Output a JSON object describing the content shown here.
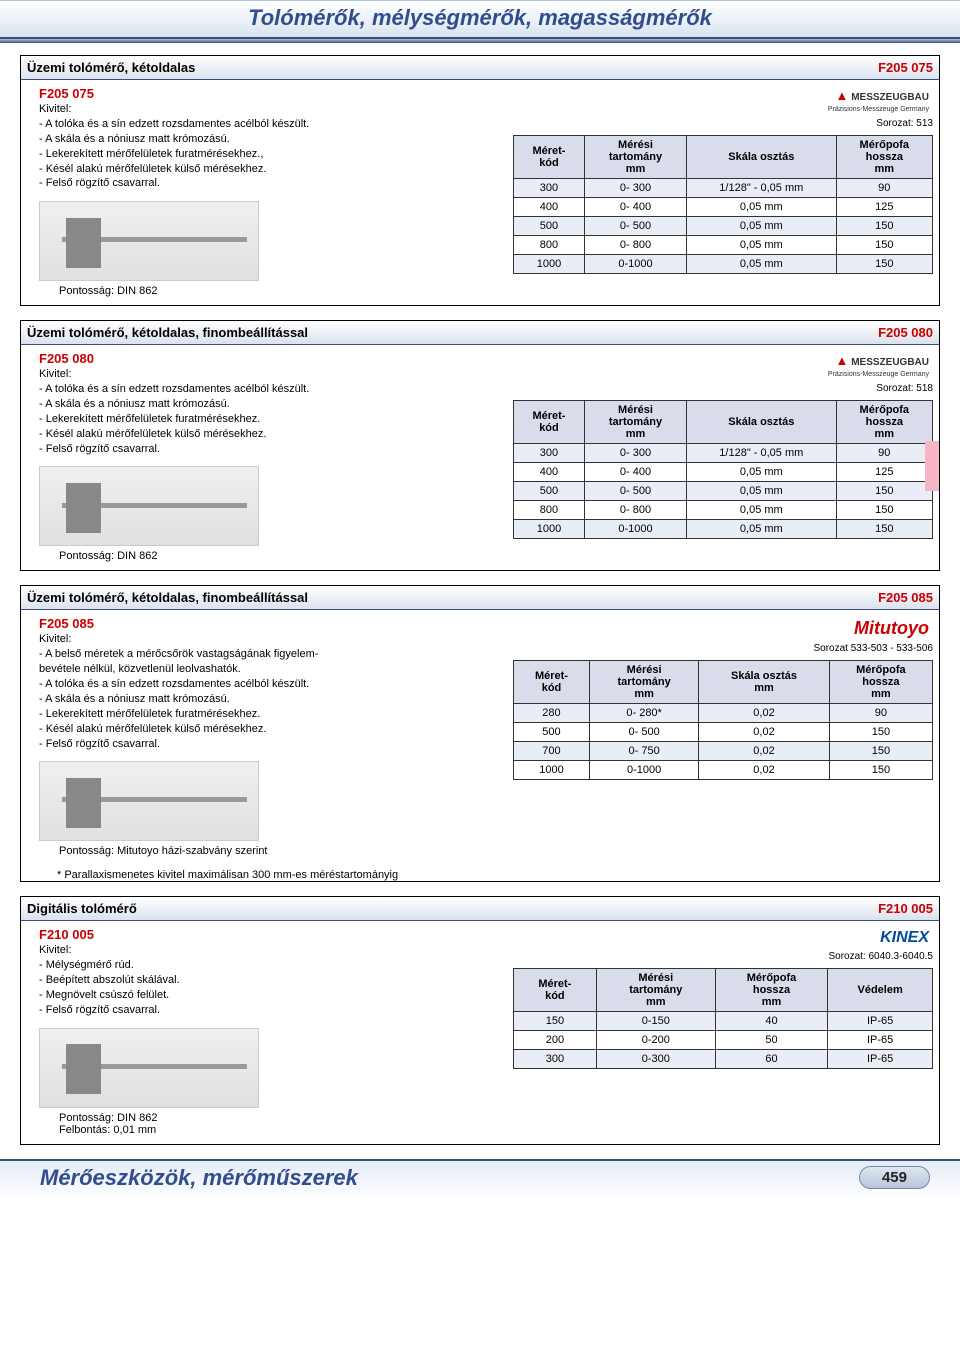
{
  "page_title": "Tolómérők, mélységmérők, magasságmérők",
  "footer_title": "Mérőeszközök, mérőműszerek",
  "page_number": "459",
  "sections": [
    {
      "header_title": "Üzemi tolómérő, kétoldalas",
      "header_code": "F205 075",
      "prod_code": "F205 075",
      "kivitel_label": "Kivitel:",
      "features": [
        "- A tolóka és a sín edzett rozsdamentes acélból készült.",
        "- A skála és a nóniusz matt krómozású.",
        "- Lekerekített mérőfelületek furatmérésekhez.,",
        "- Késél alakú mérőfelületek külső mérésekhez.",
        "- Felső rögzítő csavarral."
      ],
      "accuracy": "Pontosság: DIN 862",
      "brand": "MESSZEUGBAU",
      "brand_sub": "Präzisions-Messzeuge Germany",
      "sorozat": "Sorozat: 513",
      "columns": [
        "Méret-\nkód",
        "Mérési\ntartomány\nmm",
        "Skála osztás",
        "Mérőpofa\nhossza\nmm"
      ],
      "rows": [
        [
          "300",
          "0- 300",
          "1/128\" - 0,05 mm",
          "90"
        ],
        [
          "400",
          "0- 400",
          "0,05 mm",
          "125"
        ],
        [
          "500",
          "0- 500",
          "0,05 mm",
          "150"
        ],
        [
          "800",
          "0- 800",
          "0,05 mm",
          "150"
        ],
        [
          "1000",
          "0-1000",
          "0,05 mm",
          "150"
        ]
      ]
    },
    {
      "header_title": "Üzemi tolómérő, kétoldalas, finombeállítással",
      "header_code": "F205 080",
      "prod_code": "F205 080",
      "kivitel_label": "Kivitel:",
      "features": [
        "- A tolóka és a sín edzett rozsdamentes acélból készült.",
        "- A skála és a nóniusz matt krómozású.",
        "- Lekerekített mérőfelületek furatmérésekhez.",
        "- Késél alakú mérőfelületek külső mérésekhez.",
        "- Felső rögzítő csavarral."
      ],
      "accuracy": "Pontosság: DIN 862",
      "brand": "MESSZEUGBAU",
      "brand_sub": "Präzisions-Messzeuge Germany",
      "sorozat": "Sorozat: 518",
      "columns": [
        "Méret-\nkód",
        "Mérési\ntartomány\nmm",
        "Skála osztás",
        "Mérőpofa\nhossza\nmm"
      ],
      "rows": [
        [
          "300",
          "0- 300",
          "1/128\" - 0,05 mm",
          "90"
        ],
        [
          "400",
          "0- 400",
          "0,05 mm",
          "125"
        ],
        [
          "500",
          "0- 500",
          "0,05 mm",
          "150"
        ],
        [
          "800",
          "0- 800",
          "0,05 mm",
          "150"
        ],
        [
          "1000",
          "0-1000",
          "0,05 mm",
          "150"
        ]
      ]
    },
    {
      "header_title": "Üzemi tolómérő, kétoldalas, finombeállítással",
      "header_code": "F205 085",
      "prod_code": "F205 085",
      "kivitel_label": "Kivitel:",
      "features": [
        "- A belső méretek a mérőcsőrök vastagságának figyelem-",
        "  bevétele nélkül, közvetlenül leolvashatók.",
        "- A tolóka és a sín edzett rozsdamentes acélból készült.",
        "- A skála és a nóniusz matt krómozású.",
        "- Lekerekített mérőfelületek furatmérésekhez.",
        "- Késél alakú mérőfelületek külső mérésekhez.",
        "- Felső rögzítő csavarral."
      ],
      "accuracy": "Pontosság: Mitutoyo házi-szabvány szerint",
      "brand": "Mitutoyo",
      "brand_type": "mitu",
      "sorozat": "Sorozat 533-503 - 533-506",
      "columns": [
        "Méret-\nkód",
        "Mérési\ntartomány\nmm",
        "Skála osztás\nmm",
        "Mérőpofa\nhossza\nmm"
      ],
      "rows": [
        [
          "280",
          "0- 280*",
          "0,02",
          "90"
        ],
        [
          "500",
          "0- 500",
          "0,02",
          "150"
        ],
        [
          "700",
          "0- 750",
          "0,02",
          "150"
        ],
        [
          "1000",
          "0-1000",
          "0,02",
          "150"
        ]
      ],
      "below_note": "* Parallaxismenetes kivitel maximálisan 300 mm-es méréstartományig"
    },
    {
      "header_title": "Digitális tolómérő",
      "header_code": "F210 005",
      "prod_code": "F210 005",
      "kivitel_label": "Kivitel:",
      "features": [
        "- Mélységmérő rúd.",
        "- Beépített abszolút skálával.",
        "- Megnövelt csúszó felület.",
        "- Felső rögzítő csavarral."
      ],
      "accuracy": "Pontosság: DIN 862",
      "accuracy2": "Felbontás: 0,01 mm",
      "brand": "KINEX",
      "brand_type": "kinex",
      "sorozat": "Sorozat: 6040.3-6040.5",
      "columns": [
        "Méret-\nkód",
        "Mérési\ntartomány\nmm",
        "Mérőpofa\nhossza\nmm",
        "Védelem"
      ],
      "rows": [
        [
          "150",
          "0-150",
          "40",
          "IP-65"
        ],
        [
          "200",
          "0-200",
          "50",
          "IP-65"
        ],
        [
          "300",
          "0-300",
          "60",
          "IP-65"
        ]
      ]
    }
  ]
}
